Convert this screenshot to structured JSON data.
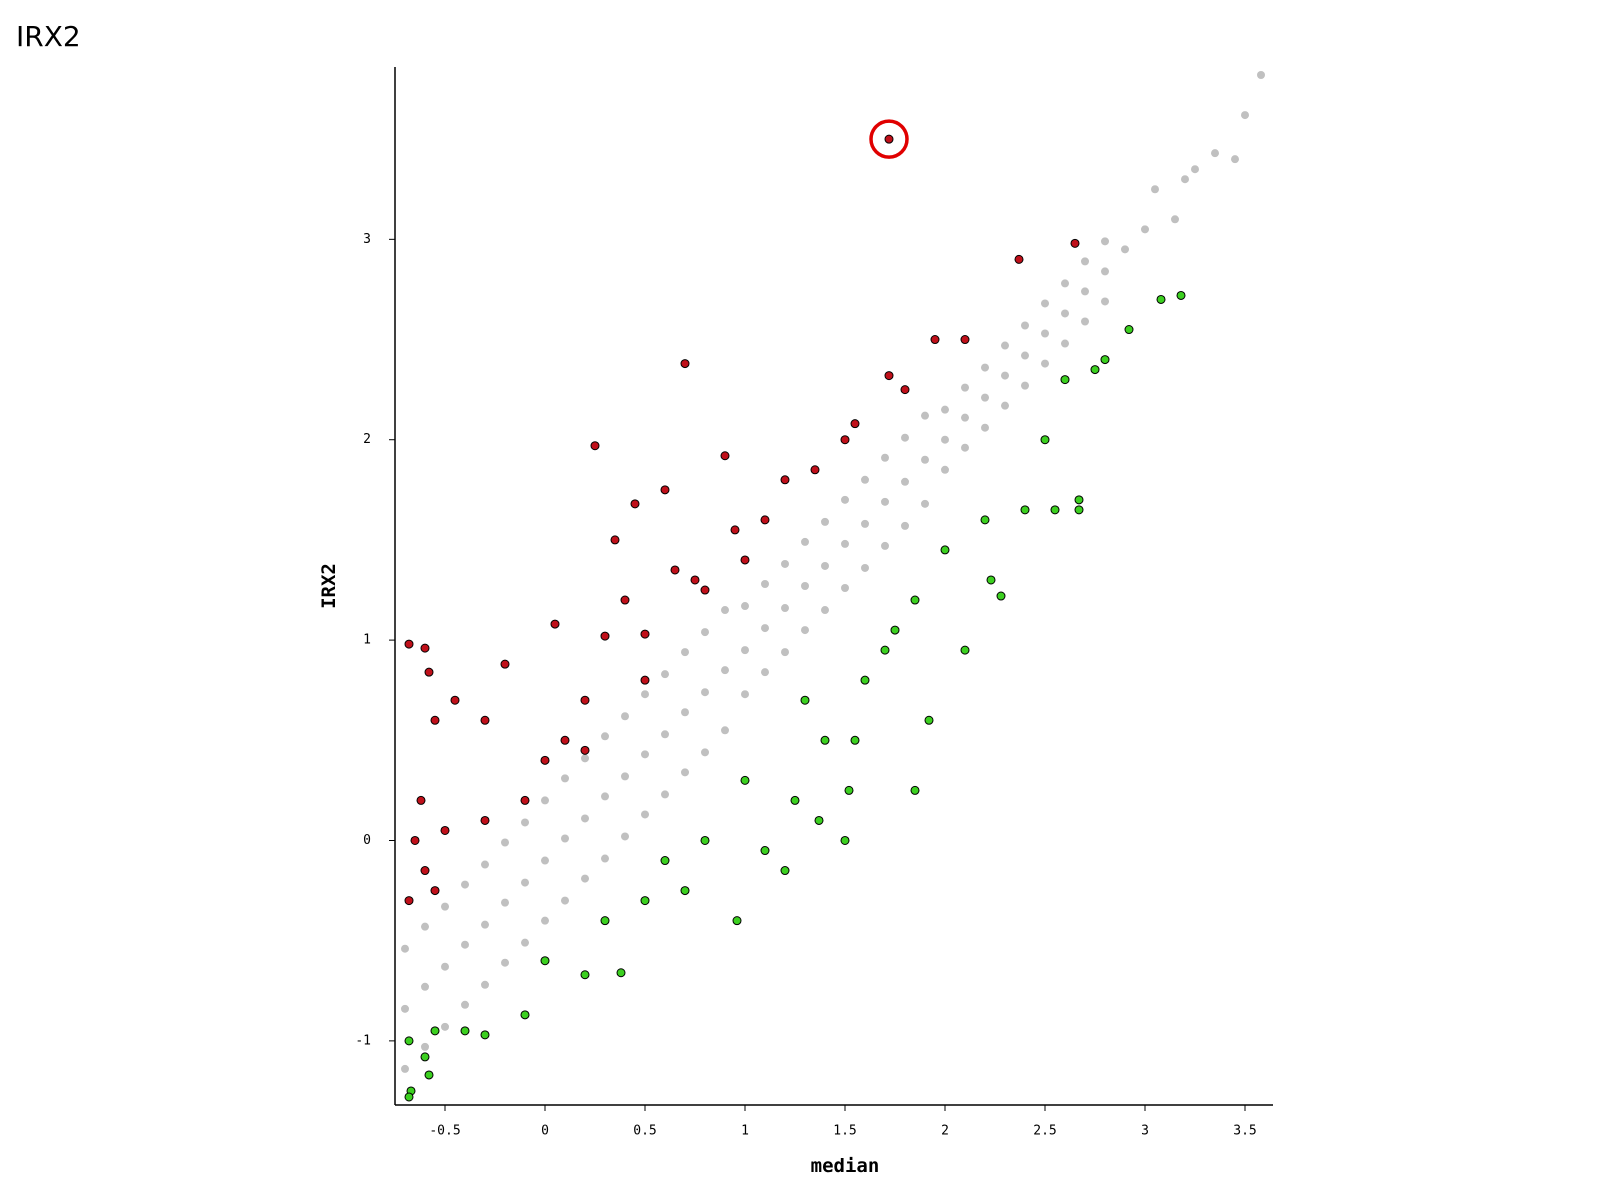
{
  "chart_data": {
    "type": "scatter",
    "title": "IRX2",
    "xlabel": "median",
    "ylabel": "IRX2",
    "xlim": [
      -0.75,
      3.64
    ],
    "ylim": [
      -1.32,
      3.86
    ],
    "xticks": [
      -0.5,
      0,
      0.5,
      1,
      1.5,
      2,
      2.5,
      3,
      3.5
    ],
    "yticks": [
      -1,
      0,
      1,
      2,
      3
    ],
    "grid": false,
    "series": [
      {
        "color": "#c0c0c0",
        "x": [
          -0.7,
          -0.7,
          -0.7,
          -0.6,
          -0.6,
          -0.6,
          -0.5,
          -0.5,
          -0.5,
          -0.4,
          -0.4,
          -0.4,
          -0.3,
          -0.3,
          -0.3,
          -0.2,
          -0.2,
          -0.2,
          -0.1,
          -0.1,
          -0.1,
          0,
          0,
          0,
          0.1,
          0.1,
          0.1,
          0.2,
          0.2,
          0.2,
          0.3,
          0.3,
          0.3,
          0.4,
          0.4,
          0.4,
          0.5,
          0.5,
          0.5,
          0.6,
          0.6,
          0.6,
          0.7,
          0.7,
          0.7,
          0.8,
          0.8,
          0.8,
          0.9,
          0.9,
          0.9,
          1.0,
          1.0,
          1.0,
          1.1,
          1.1,
          1.1,
          1.2,
          1.2,
          1.2,
          1.3,
          1.3,
          1.3,
          1.4,
          1.4,
          1.4,
          1.5,
          1.5,
          1.5,
          1.6,
          1.6,
          1.6,
          1.7,
          1.7,
          1.7,
          1.8,
          1.8,
          1.8,
          1.9,
          1.9,
          1.9,
          2.0,
          2.0,
          2.0,
          2.1,
          2.1,
          2.1,
          2.2,
          2.2,
          2.2,
          2.3,
          2.3,
          2.3,
          2.4,
          2.4,
          2.4,
          2.5,
          2.5,
          2.5,
          2.6,
          2.6,
          2.6,
          2.7,
          2.7,
          2.7,
          2.8,
          2.8,
          2.8,
          2.9,
          3.0,
          3.05,
          3.15,
          3.2,
          3.25,
          3.35,
          3.45,
          3.5,
          3.58
        ],
        "values": [
          -1.14,
          -0.84,
          -0.54,
          -1.03,
          -0.73,
          -0.43,
          -0.93,
          -0.63,
          -0.33,
          -0.82,
          -0.52,
          -0.22,
          -0.72,
          -0.42,
          -0.12,
          -0.61,
          -0.31,
          -0.01,
          -0.51,
          -0.21,
          0.09,
          -0.4,
          -0.1,
          0.2,
          -0.3,
          0.01,
          0.31,
          -0.19,
          0.11,
          0.41,
          -0.09,
          0.22,
          0.52,
          0.02,
          0.32,
          0.62,
          0.13,
          0.43,
          0.73,
          0.23,
          0.53,
          0.83,
          0.34,
          0.64,
          0.94,
          0.44,
          0.74,
          1.04,
          0.55,
          0.85,
          1.15,
          0.73,
          0.95,
          1.17,
          0.84,
          1.06,
          1.28,
          0.94,
          1.16,
          1.38,
          1.05,
          1.27,
          1.49,
          1.15,
          1.37,
          1.59,
          1.26,
          1.48,
          1.7,
          1.36,
          1.58,
          1.8,
          1.47,
          1.69,
          1.91,
          1.57,
          1.79,
          2.01,
          1.68,
          1.9,
          2.12,
          1.85,
          2.0,
          2.15,
          1.96,
          2.11,
          2.26,
          2.06,
          2.21,
          2.36,
          2.17,
          2.32,
          2.47,
          2.27,
          2.42,
          2.57,
          2.38,
          2.53,
          2.68,
          2.48,
          2.63,
          2.78,
          2.59,
          2.74,
          2.89,
          2.69,
          2.84,
          2.99,
          2.95,
          3.05,
          3.25,
          3.1,
          3.3,
          3.35,
          3.43,
          3.4,
          3.62,
          3.82
        ]
      },
      {
        "color": "#c0101a",
        "edgecolor": "#000000",
        "x": [
          -0.68,
          -0.6,
          -0.58,
          -0.62,
          -0.65,
          -0.6,
          -0.55,
          -0.68,
          -0.5,
          -0.45,
          -0.55,
          -0.3,
          -0.2,
          -0.1,
          0,
          0.05,
          0.1,
          0.2,
          0.25,
          0.3,
          0.35,
          0.4,
          0.45,
          0.5,
          0.6,
          0.65,
          0.7,
          0.75,
          0.9,
          0.95,
          1.1,
          1.2,
          1.35,
          1.5,
          1.55,
          1.72,
          1.8,
          1.95,
          2.1,
          2.37,
          2.65,
          1.72,
          0.8,
          1.0,
          -0.3,
          0.2,
          0.5
        ],
        "values": [
          0.98,
          0.96,
          0.84,
          0.2,
          0.0,
          -0.15,
          -0.25,
          -0.3,
          0.05,
          0.7,
          0.6,
          0.6,
          0.88,
          0.2,
          0.4,
          1.08,
          0.5,
          0.7,
          1.97,
          1.02,
          1.5,
          1.2,
          1.68,
          1.03,
          1.75,
          1.35,
          2.38,
          1.3,
          1.92,
          1.55,
          1.6,
          1.8,
          1.85,
          2.0,
          2.08,
          2.32,
          2.25,
          2.5,
          2.5,
          2.9,
          2.98,
          3.5,
          1.25,
          1.4,
          0.1,
          0.45,
          0.8
        ]
      },
      {
        "color": "#3cd020",
        "edgecolor": "#000000",
        "x": [
          -0.68,
          -0.67,
          -0.68,
          -0.6,
          -0.58,
          -0.55,
          -0.4,
          -0.3,
          -0.1,
          0,
          0.2,
          0.38,
          0.3,
          0.5,
          0.6,
          0.7,
          0.8,
          0.96,
          1.1,
          1.2,
          1.0,
          1.25,
          1.37,
          1.5,
          1.52,
          1.55,
          1.3,
          1.6,
          1.7,
          1.75,
          1.85,
          1.92,
          2.1,
          1.85,
          2.0,
          2.23,
          2.28,
          2.4,
          2.55,
          2.67,
          2.67,
          2.5,
          2.6,
          2.8,
          2.92,
          3.08,
          3.18,
          2.75,
          2.2,
          1.4
        ],
        "values": [
          -1.0,
          -1.25,
          -1.28,
          -1.08,
          -1.17,
          -0.95,
          -0.95,
          -0.97,
          -0.87,
          -0.6,
          -0.67,
          -0.66,
          -0.4,
          -0.3,
          -0.1,
          -0.25,
          0.0,
          -0.4,
          -0.05,
          -0.15,
          0.3,
          0.2,
          0.1,
          0.0,
          0.25,
          0.5,
          0.7,
          0.8,
          0.95,
          1.05,
          0.25,
          0.6,
          0.95,
          1.2,
          1.45,
          1.3,
          1.22,
          1.65,
          1.65,
          1.65,
          1.7,
          2.0,
          2.3,
          2.4,
          2.55,
          2.7,
          2.72,
          2.35,
          1.6,
          0.5
        ]
      },
      {
        "color": "#e00000",
        "marker": "ring",
        "x": [
          1.72
        ],
        "values": [
          3.5
        ]
      }
    ]
  }
}
